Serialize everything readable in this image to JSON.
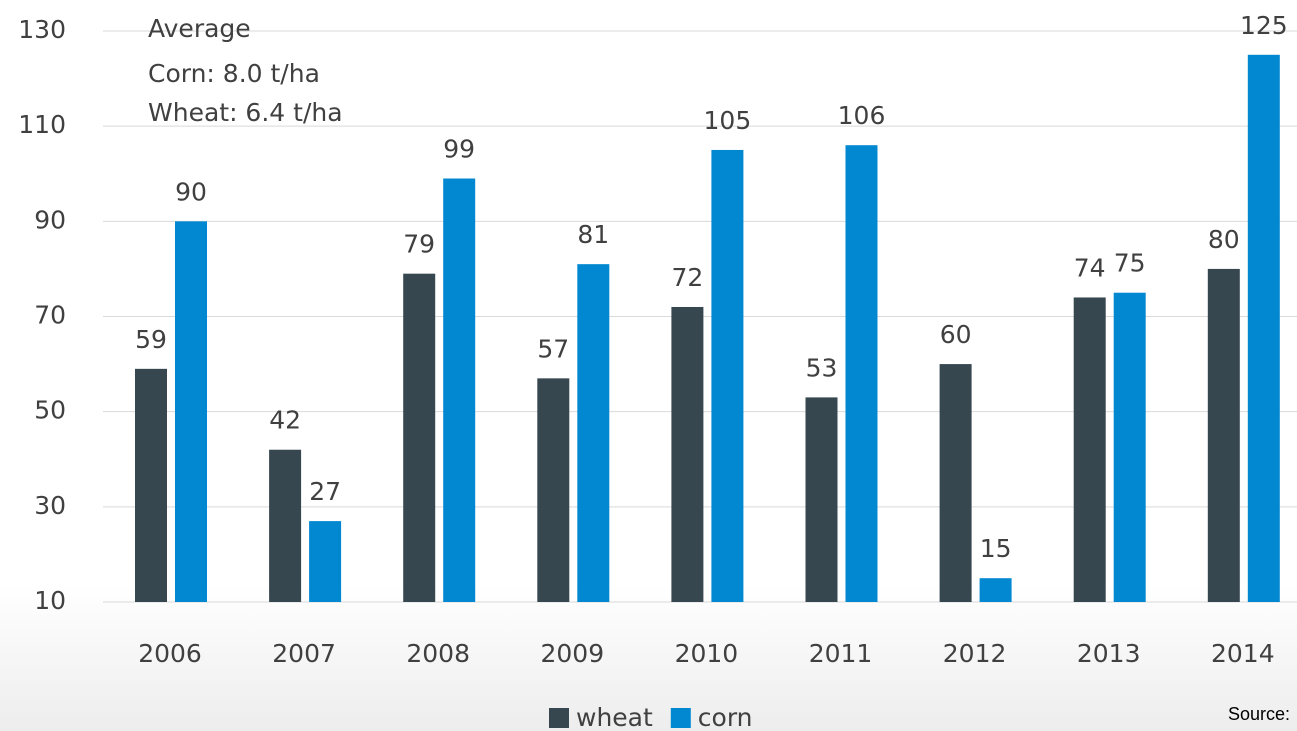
{
  "chart_data": {
    "type": "bar",
    "annotations": [
      "Average",
      "Corn: 8.0 t/ha",
      "Wheat: 6.4 t/ha"
    ],
    "source": "Source:",
    "categories": [
      "2006",
      "2007",
      "2008",
      "2009",
      "2010",
      "2011",
      "2012",
      "2013",
      "2014"
    ],
    "series": [
      {
        "name": "wheat",
        "color": "#37474f",
        "values": [
          59,
          42,
          79,
          57,
          72,
          53,
          60,
          74,
          80
        ]
      },
      {
        "name": "corn",
        "color": "#0288d1",
        "values": [
          90,
          27,
          99,
          81,
          105,
          106,
          15,
          75,
          125
        ]
      }
    ],
    "ylim": [
      10,
      130
    ],
    "yticks": [
      10,
      30,
      50,
      70,
      90,
      110,
      130
    ],
    "grid": true,
    "legend": "bottom"
  }
}
